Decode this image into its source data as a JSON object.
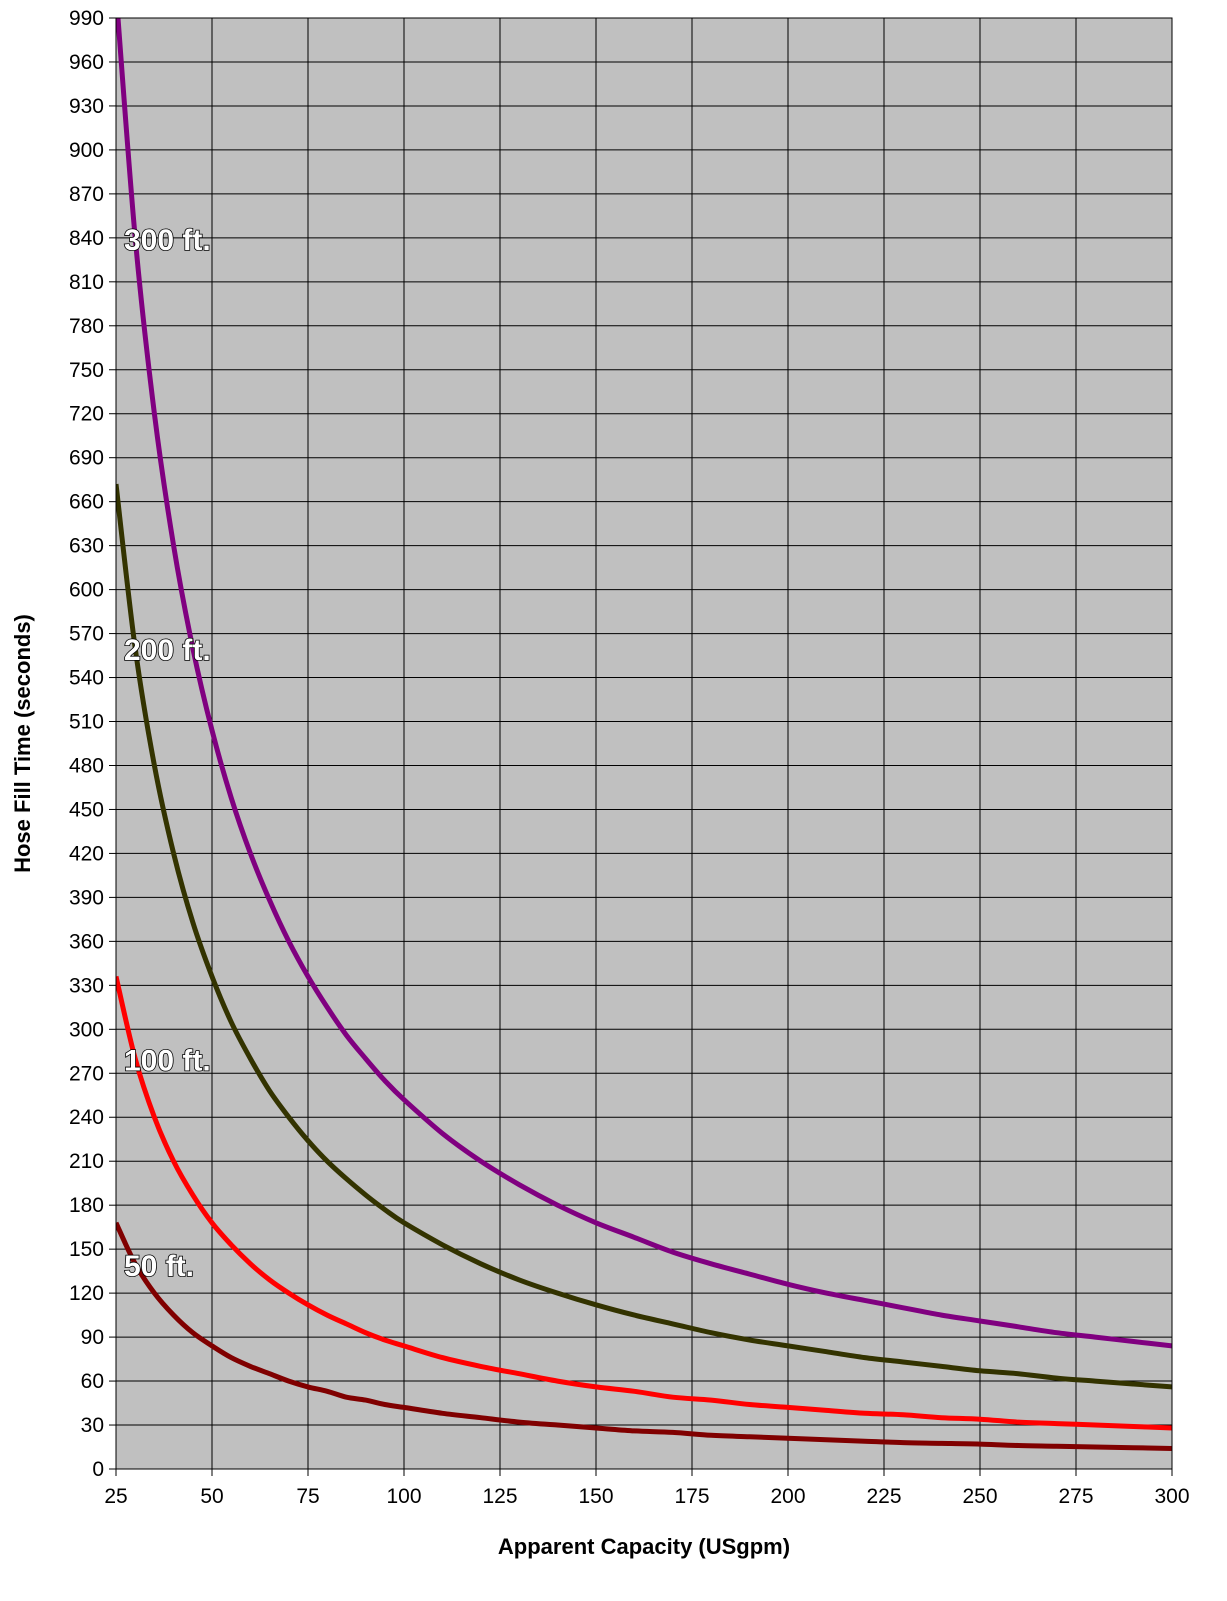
{
  "chart_data": {
    "type": "line",
    "xlabel": "Apparent Capacity (USgpm)",
    "ylabel": "Hose Fill Time (seconds)",
    "xlim": [
      25,
      300
    ],
    "ylim": [
      0,
      990
    ],
    "x_ticks": [
      25,
      50,
      75,
      100,
      125,
      150,
      175,
      200,
      225,
      250,
      275,
      300
    ],
    "y_ticks": [
      0,
      30,
      60,
      90,
      120,
      150,
      180,
      210,
      240,
      270,
      300,
      330,
      360,
      390,
      420,
      450,
      480,
      510,
      540,
      570,
      600,
      630,
      660,
      690,
      720,
      750,
      780,
      810,
      840,
      870,
      900,
      930,
      960,
      990
    ],
    "grid": true,
    "plot_background": "#c0c0c0",
    "x": [
      25,
      30,
      35,
      40,
      45,
      50,
      55,
      60,
      65,
      70,
      75,
      80,
      85,
      90,
      95,
      100,
      110,
      120,
      130,
      140,
      150,
      160,
      170,
      180,
      190,
      200,
      210,
      220,
      230,
      240,
      250,
      260,
      270,
      280,
      290,
      300
    ],
    "series": [
      {
        "name": "300 ft.",
        "color": "#800080",
        "values": [
          1008,
          840,
          720,
          630,
          560,
          504,
          458,
          420,
          388,
          360,
          336,
          315,
          296,
          280,
          265,
          252,
          229,
          210,
          194,
          180,
          168,
          158,
          148,
          140,
          133,
          126,
          120,
          115,
          110,
          105,
          101,
          97,
          93,
          90,
          87,
          84
        ]
      },
      {
        "name": "200 ft.",
        "color": "#333300",
        "values": [
          672,
          560,
          480,
          420,
          373,
          336,
          305,
          280,
          258,
          240,
          224,
          210,
          198,
          187,
          177,
          168,
          153,
          140,
          129,
          120,
          112,
          105,
          99,
          93,
          88,
          84,
          80,
          76,
          73,
          70,
          67,
          65,
          62,
          60,
          58,
          56
        ]
      },
      {
        "name": "100 ft.",
        "color": "#ff0000",
        "values": [
          336,
          280,
          240,
          210,
          187,
          168,
          153,
          140,
          129,
          120,
          112,
          105,
          99,
          93,
          88,
          84,
          76,
          70,
          65,
          60,
          56,
          53,
          49,
          47,
          44,
          42,
          40,
          38,
          37,
          35,
          34,
          32,
          31,
          30,
          29,
          28
        ]
      },
      {
        "name": "50 ft.",
        "color": "#800000",
        "values": [
          168,
          140,
          120,
          105,
          93,
          84,
          76,
          70,
          65,
          60,
          56,
          53,
          49,
          47,
          44,
          42,
          38,
          35,
          32,
          30,
          28,
          26,
          25,
          23,
          22,
          21,
          20,
          19,
          18,
          17.5,
          17,
          16,
          15.5,
          15,
          14.5,
          14
        ]
      }
    ]
  }
}
